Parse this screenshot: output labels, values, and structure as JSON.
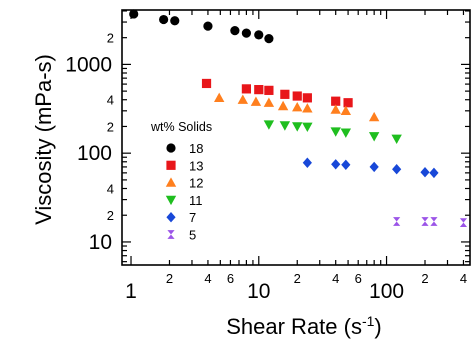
{
  "chart_data": {
    "type": "scatter",
    "title": "",
    "xlabel": "Shear Rate (s",
    "xlabel_sup": "-1",
    "xlabel_close": ")",
    "ylabel": "Viscosity (mPa-s)",
    "xscale": "log",
    "yscale": "log",
    "xlim": [
      0.85,
      450
    ],
    "ylim": [
      5.5,
      4100
    ],
    "x_major_ticks": [
      {
        "value": 1,
        "label": "1"
      },
      {
        "value": 10,
        "label": "10"
      },
      {
        "value": 100,
        "label": "100"
      }
    ],
    "x_minor_ticks": [
      {
        "value": 2,
        "label": "2"
      },
      {
        "value": 3,
        "label": ""
      },
      {
        "value": 4,
        "label": "4"
      },
      {
        "value": 5,
        "label": ""
      },
      {
        "value": 6,
        "label": "6"
      },
      {
        "value": 7,
        "label": ""
      },
      {
        "value": 8,
        "label": ""
      },
      {
        "value": 9,
        "label": ""
      },
      {
        "value": 20,
        "label": "2"
      },
      {
        "value": 30,
        "label": ""
      },
      {
        "value": 40,
        "label": "4"
      },
      {
        "value": 50,
        "label": ""
      },
      {
        "value": 60,
        "label": "6"
      },
      {
        "value": 70,
        "label": ""
      },
      {
        "value": 80,
        "label": ""
      },
      {
        "value": 90,
        "label": ""
      },
      {
        "value": 200,
        "label": "2"
      },
      {
        "value": 300,
        "label": ""
      },
      {
        "value": 400,
        "label": "4"
      }
    ],
    "y_major_ticks": [
      {
        "value": 10,
        "label": "10"
      },
      {
        "value": 100,
        "label": "100"
      },
      {
        "value": 1000,
        "label": "1000"
      }
    ],
    "y_minor_ticks": [
      {
        "value": 6,
        "label": ""
      },
      {
        "value": 7,
        "label": ""
      },
      {
        "value": 8,
        "label": ""
      },
      {
        "value": 9,
        "label": ""
      },
      {
        "value": 20,
        "label": "2"
      },
      {
        "value": 30,
        "label": ""
      },
      {
        "value": 40,
        "label": "4"
      },
      {
        "value": 50,
        "label": ""
      },
      {
        "value": 60,
        "label": ""
      },
      {
        "value": 70,
        "label": ""
      },
      {
        "value": 80,
        "label": ""
      },
      {
        "value": 90,
        "label": ""
      },
      {
        "value": 200,
        "label": "2"
      },
      {
        "value": 300,
        "label": ""
      },
      {
        "value": 400,
        "label": "4"
      },
      {
        "value": 500,
        "label": ""
      },
      {
        "value": 600,
        "label": ""
      },
      {
        "value": 700,
        "label": ""
      },
      {
        "value": 800,
        "label": ""
      },
      {
        "value": 900,
        "label": ""
      },
      {
        "value": 2000,
        "label": "2"
      },
      {
        "value": 3000,
        "label": ""
      },
      {
        "value": 4000,
        "label": ""
      }
    ],
    "grid": false,
    "legend": {
      "title": "wt% Solids",
      "placement": "left-middle"
    },
    "series": [
      {
        "name": "18",
        "color": "#000000",
        "marker": "circle",
        "points": [
          [
            1.05,
            3700
          ],
          [
            1.8,
            3200
          ],
          [
            2.2,
            3100
          ],
          [
            4,
            2700
          ],
          [
            6.5,
            2400
          ],
          [
            8,
            2250
          ],
          [
            10,
            2150
          ],
          [
            12,
            1950
          ]
        ]
      },
      {
        "name": "13",
        "color": "#e8161a",
        "marker": "square",
        "points": [
          [
            3.9,
            610
          ],
          [
            8,
            530
          ],
          [
            10,
            520
          ],
          [
            12,
            510
          ],
          [
            16,
            460
          ],
          [
            20,
            440
          ],
          [
            24,
            420
          ],
          [
            40,
            385
          ],
          [
            50,
            370
          ]
        ]
      },
      {
        "name": "12",
        "color": "#ff7f1e",
        "marker": "triangle-up",
        "points": [
          [
            4.9,
            420
          ],
          [
            7.5,
            400
          ],
          [
            9.5,
            380
          ],
          [
            12,
            370
          ],
          [
            15.5,
            340
          ],
          [
            20,
            330
          ],
          [
            24,
            320
          ],
          [
            40,
            310
          ],
          [
            48,
            300
          ],
          [
            80,
            255
          ]
        ]
      },
      {
        "name": "11",
        "color": "#1fbe1f",
        "marker": "triangle-down",
        "points": [
          [
            12,
            210
          ],
          [
            16,
            205
          ],
          [
            20,
            200
          ],
          [
            24,
            198
          ],
          [
            40,
            175
          ],
          [
            48,
            170
          ],
          [
            80,
            155
          ],
          [
            120,
            145
          ]
        ]
      },
      {
        "name": "7",
        "color": "#1848d8",
        "marker": "diamond",
        "points": [
          [
            24,
            78
          ],
          [
            40,
            75
          ],
          [
            48,
            74
          ],
          [
            80,
            70
          ],
          [
            120,
            66
          ],
          [
            200,
            61
          ],
          [
            235,
            60
          ]
        ]
      },
      {
        "name": "5",
        "color": "#9b54e8",
        "marker": "hourglass",
        "points": [
          [
            120,
            17
          ],
          [
            200,
            17
          ],
          [
            235,
            17
          ],
          [
            400,
            16.5
          ]
        ]
      }
    ]
  }
}
